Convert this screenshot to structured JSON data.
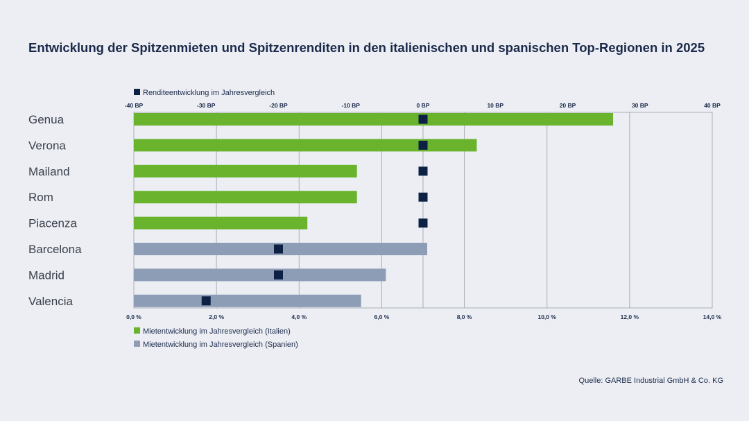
{
  "title": "Entwicklung der Spitzenmieten und Spitzenrenditen in den italienischen und spanischen Top-Regionen in 2025",
  "source": "Quelle: GARBE Industrial GmbH & Co. KG",
  "colors": {
    "italy": "#6ab42d",
    "spain": "#8d9db6",
    "yield": "#0d2145",
    "grid": "#a9adb8",
    "background": "#eceef4"
  },
  "chart_data": {
    "type": "bar",
    "orientation": "horizontal",
    "categories": [
      "Genua",
      "Verona",
      "Mailand",
      "Rom",
      "Piacenza",
      "Barcelona",
      "Madrid",
      "Valencia"
    ],
    "series": [
      {
        "name": "Mietentwicklung im Jahresvergleich (Italien)",
        "axis": "bottom",
        "unit": "%",
        "values": [
          11.6,
          8.3,
          5.4,
          5.4,
          4.2,
          null,
          null,
          null
        ]
      },
      {
        "name": "Mietentwicklung im Jahresvergleich (Spanien)",
        "axis": "bottom",
        "unit": "%",
        "values": [
          null,
          null,
          null,
          null,
          null,
          7.1,
          6.1,
          5.5
        ]
      },
      {
        "name": "Renditeentwicklung im Jahresvergleich",
        "axis": "top",
        "unit": "BP",
        "type": "marker",
        "values": [
          0,
          0,
          0,
          0,
          0,
          -20,
          -20,
          -30
        ]
      }
    ],
    "bottom_axis": {
      "range": [
        0,
        14
      ],
      "ticks": [
        "0,0 %",
        "2,0 %",
        "4,0 %",
        "6,0 %",
        "8,0 %",
        "10,0 %",
        "12,0 %",
        "14,0 %"
      ]
    },
    "top_axis": {
      "range": [
        -40,
        40
      ],
      "ticks": [
        "-40 BP",
        "-30 BP",
        "-20 BP",
        "-10 BP",
        "0 BP",
        "10 BP",
        "20 BP",
        "30 BP",
        "40 BP"
      ]
    },
    "grid": true,
    "legend": [
      "top-left (yield marker)",
      "bottom-left (rent bars)"
    ]
  }
}
